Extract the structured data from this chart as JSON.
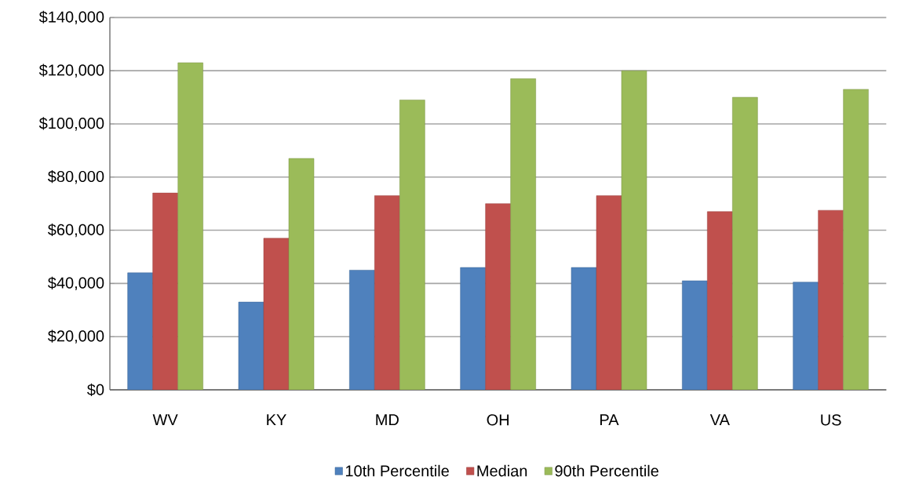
{
  "chart_data": {
    "type": "bar",
    "categories": [
      "WV",
      "KY",
      "MD",
      "OH",
      "PA",
      "VA",
      "US"
    ],
    "series": [
      {
        "name": "10th Percentile",
        "color": "#4f81bd",
        "values": [
          44000,
          33000,
          45000,
          46000,
          46000,
          41000,
          40500
        ]
      },
      {
        "name": "Median",
        "color": "#c0504d",
        "values": [
          74000,
          57000,
          73000,
          70000,
          73000,
          67000,
          67500
        ]
      },
      {
        "name": "90th Percentile",
        "color": "#9bbb59",
        "values": [
          123000,
          87000,
          109000,
          117000,
          120000,
          110000,
          113000
        ]
      }
    ],
    "ylim": [
      0,
      140000
    ],
    "yticks": [
      {
        "value": 0,
        "label": "$0"
      },
      {
        "value": 20000,
        "label": "$20,000"
      },
      {
        "value": 40000,
        "label": "$40,000"
      },
      {
        "value": 60000,
        "label": "$60,000"
      },
      {
        "value": 80000,
        "label": "$80,000"
      },
      {
        "value": 100000,
        "label": "$100,000"
      },
      {
        "value": 120000,
        "label": "$120,000"
      },
      {
        "value": 140000,
        "label": "$140,000"
      }
    ],
    "grid": "y",
    "legend": "bottom"
  }
}
